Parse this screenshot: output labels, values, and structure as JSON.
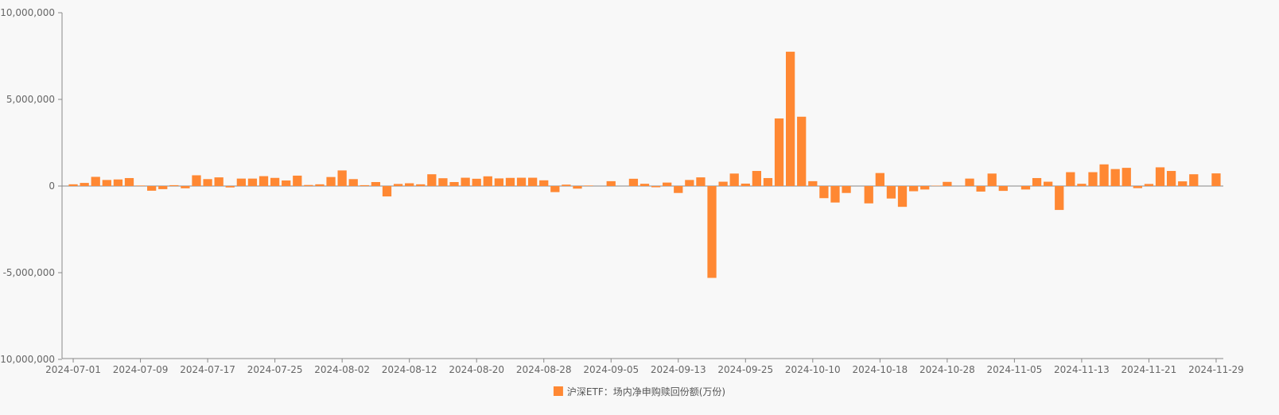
{
  "chart_data": {
    "type": "bar",
    "title": "",
    "xlabel": "",
    "ylabel": "",
    "ylim": [
      -10000000,
      10000000
    ],
    "yticks": [
      10000000,
      5000000,
      0,
      -5000000,
      -10000000
    ],
    "ytick_labels": [
      "10,000,000",
      "5,000,000",
      "0",
      "-5,000,000",
      "-10,000,000"
    ],
    "xtick_labels": [
      "2024-07-01",
      "2024-07-09",
      "2024-07-17",
      "2024-07-25",
      "2024-08-02",
      "2024-08-12",
      "2024-08-20",
      "2024-08-28",
      "2024-09-05",
      "2024-09-13",
      "2024-09-25",
      "2024-10-10",
      "2024-10-18",
      "2024-10-28",
      "2024-11-05",
      "2024-11-13",
      "2024-11-21",
      "2024-11-29"
    ],
    "bar_color": "#ff8833",
    "legend_position": "bottom-center",
    "series": [
      {
        "name": "沪深ETF：场内净申购赎回份额(万份)",
        "values": [
          100000,
          180000,
          530000,
          350000,
          380000,
          460000,
          30000,
          -270000,
          -180000,
          50000,
          -130000,
          620000,
          400000,
          500000,
          -80000,
          430000,
          430000,
          570000,
          470000,
          320000,
          600000,
          60000,
          100000,
          520000,
          900000,
          400000,
          50000,
          230000,
          -600000,
          120000,
          160000,
          100000,
          680000,
          450000,
          230000,
          480000,
          420000,
          560000,
          440000,
          470000,
          480000,
          480000,
          330000,
          -350000,
          80000,
          -150000,
          30000,
          0,
          280000,
          0,
          420000,
          130000,
          -70000,
          200000,
          -400000,
          350000,
          500000,
          -5300000,
          250000,
          720000,
          140000,
          870000,
          460000,
          3900000,
          7750000,
          4000000,
          280000,
          -700000,
          -950000,
          -400000,
          0,
          -1000000,
          750000,
          -720000,
          -1200000,
          -300000,
          -200000,
          20000,
          240000,
          0,
          430000,
          -320000,
          720000,
          -280000,
          0,
          -200000,
          460000,
          250000,
          -1380000,
          800000,
          130000,
          800000,
          1250000,
          980000,
          1050000,
          -120000,
          120000,
          1080000,
          870000,
          270000,
          680000,
          0,
          730000
        ]
      }
    ]
  }
}
